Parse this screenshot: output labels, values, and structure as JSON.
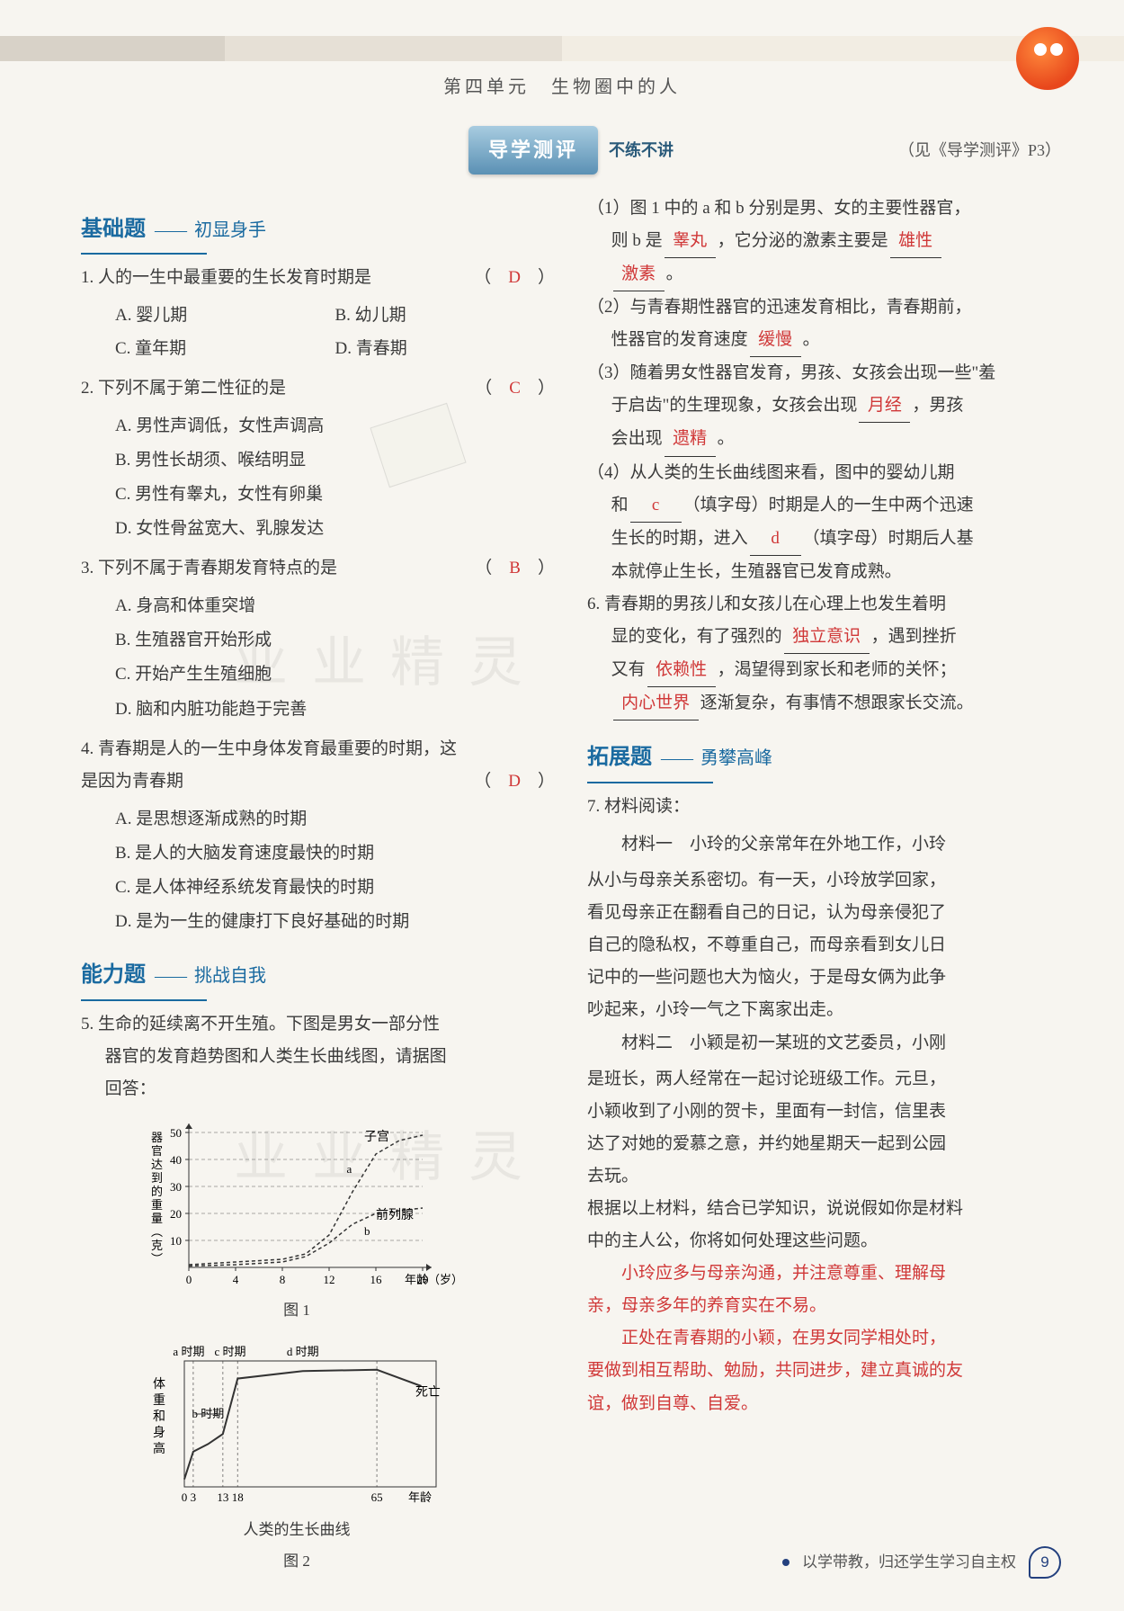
{
  "header": {
    "unit_title": "第四单元　生物圈中的人",
    "badge": "导学测评",
    "badge_sub": "不练不讲",
    "badge_ref": "（见《导学测评》P3）"
  },
  "sections": {
    "basic": {
      "cn": "基础题",
      "script": "初显身手"
    },
    "ability": {
      "cn": "能力题",
      "script": "挑战自我"
    },
    "extend": {
      "cn": "拓展题",
      "script": "勇攀高峰"
    }
  },
  "q1": {
    "stem": "1. 人的一生中最重要的生长发育时期是",
    "ans": "D",
    "A": "A. 婴儿期",
    "B": "B. 幼儿期",
    "C": "C. 童年期",
    "D": "D. 青春期"
  },
  "q2": {
    "stem": "2. 下列不属于第二性征的是",
    "ans": "C",
    "A": "A. 男性声调低，女性声调高",
    "B": "B. 男性长胡须、喉结明显",
    "C": "C. 男性有睾丸，女性有卵巢",
    "D": "D. 女性骨盆宽大、乳腺发达"
  },
  "q3": {
    "stem": "3. 下列不属于青春期发育特点的是",
    "ans": "B",
    "A": "A. 身高和体重突增",
    "B": "B. 生殖器官开始形成",
    "C": "C. 开始产生生殖细胞",
    "D": "D. 脑和内脏功能趋于完善"
  },
  "q4": {
    "stem_a": "4. 青春期是人的一生中身体发育最重要的时期，这",
    "stem_b": "是因为青春期",
    "ans": "D",
    "A": "A. 是思想逐渐成熟的时期",
    "B": "B. 是人的大脑发育速度最快的时期",
    "C": "C. 是人体神经系统发育最快的时期",
    "D": "D. 是为一生的健康打下良好基础的时期"
  },
  "q5": {
    "stem_a": "5. 生命的延续离不开生殖。下图是男女一部分性",
    "stem_b": "器官的发育趋势图和人类生长曲线图，请据图",
    "stem_c": "回答：",
    "chart1": {
      "type": "line",
      "y_label_lines": [
        "器",
        "官",
        "达",
        "到",
        "的",
        "重",
        "量",
        "︵",
        "克",
        "︶"
      ],
      "y_ticks": [
        "10",
        "20",
        "30",
        "40",
        "50"
      ],
      "x_label": "年龄（岁）",
      "x_ticks": [
        "0",
        "4",
        "8",
        "12",
        "16",
        "20"
      ],
      "caption": "图 1",
      "series_a_label": "子宫",
      "series_a_sub": "a",
      "series_b_label": "前列腺",
      "series_b_sub": "b",
      "line_color": "#333333",
      "dash": "4,3",
      "a_points": [
        [
          0,
          1
        ],
        [
          4,
          2
        ],
        [
          8,
          3
        ],
        [
          10,
          5
        ],
        [
          12,
          12
        ],
        [
          14,
          28
        ],
        [
          16,
          42
        ],
        [
          18,
          47
        ],
        [
          20,
          49
        ]
      ],
      "b_points": [
        [
          0,
          0.5
        ],
        [
          4,
          1
        ],
        [
          8,
          2
        ],
        [
          10,
          4
        ],
        [
          12,
          9
        ],
        [
          14,
          16
        ],
        [
          16,
          20
        ],
        [
          18,
          21
        ],
        [
          20,
          22
        ]
      ]
    },
    "chart2": {
      "type": "line",
      "caption_top_labels": [
        "a 时期",
        "c 时期",
        "d 时期"
      ],
      "b_label": "b 时期",
      "right_label": "死亡",
      "y_label_lines": [
        "体",
        "重",
        "和",
        "身",
        "高"
      ],
      "x_ticks": [
        "0",
        "3",
        "13",
        "18",
        "65",
        "年龄"
      ],
      "caption_a": "人类的生长曲线",
      "caption_b": "图 2",
      "line_color": "#333333",
      "points": [
        [
          0,
          6
        ],
        [
          3,
          28
        ],
        [
          8,
          34
        ],
        [
          13,
          42
        ],
        [
          18,
          86
        ],
        [
          40,
          92
        ],
        [
          65,
          93
        ],
        [
          80,
          80
        ]
      ],
      "v_lines": [
        3,
        13,
        18,
        65
      ]
    },
    "p1_a": "（1）图 1 中的 a 和 b 分别是男、女的主要性器官，",
    "p1_b": "则 b 是",
    "p1_b_ans": "睾丸",
    "p1_c": "，它分泌的激素主要是",
    "p1_c_ans": "雄性",
    "p1_d_ans": "激素",
    "p1_d": "。",
    "p2_a": "（2）与青春期性器官的迅速发育相比，青春期前，",
    "p2_b": "性器官的发育速度",
    "p2_b_ans": "缓慢",
    "p2_c": "。",
    "p3_a": "（3）随着男女性器官发育，男孩、女孩会出现一些\"羞",
    "p3_b": "于启齿\"的生理现象，女孩会出现",
    "p3_b_ans": "月经",
    "p3_c": "，男孩",
    "p3_d": "会出现",
    "p3_d_ans": "遗精",
    "p3_e": "。",
    "p4_a": "（4）从人类的生长曲线图来看，图中的婴幼儿期",
    "p4_b": "和",
    "p4_b_ans": "c",
    "p4_c": "（填字母）时期是人的一生中两个迅速",
    "p4_d": "生长的时期，进入",
    "p4_d_ans": "d",
    "p4_e": "（填字母）时期后人基",
    "p4_f": "本就停止生长，生殖器官已发育成熟。"
  },
  "q6": {
    "a": "6. 青春期的男孩儿和女孩儿在心理上也发生着明",
    "b": "显的变化，有了强烈的",
    "b_ans": "独立意识",
    "c": "，遇到挫折",
    "d": "又有",
    "d_ans": "依赖性",
    "e": "，渴望得到家长和老师的关怀；",
    "f_ans": "内心世界",
    "f": "逐渐复杂，有事情不想跟家长交流。"
  },
  "q7": {
    "head": "7. 材料阅读：",
    "m1_a": "材料一　小玲的父亲常年在外地工作，小玲",
    "m1_b": "从小与母亲关系密切。有一天，小玲放学回家，",
    "m1_c": "看见母亲正在翻看自己的日记，认为母亲侵犯了",
    "m1_d": "自己的隐私权，不尊重自己，而母亲看到女儿日",
    "m1_e": "记中的一些问题也大为恼火，于是母女俩为此争",
    "m1_f": "吵起来，小玲一气之下离家出走。",
    "m2_a": "材料二　小颖是初一某班的文艺委员，小刚",
    "m2_b": "是班长，两人经常在一起讨论班级工作。元旦，",
    "m2_c": "小颖收到了小刚的贺卡，里面有一封信，信里表",
    "m2_d": "达了对她的爱慕之意，并约她星期天一起到公园",
    "m2_e": "去玩。",
    "ask_a": "根据以上材料，结合已学知识，说说假如你是材料",
    "ask_b": "中的主人公，你将如何处理这些问题。",
    "ans1_a": "小玲应多与母亲沟通，并注意尊重、理解母",
    "ans1_b": "亲，母亲多年的养育实在不易。",
    "ans2_a": "正处在青春期的小颖，在男女同学相处时，",
    "ans2_b": "要做到相互帮助、勉励，共同进步，建立真诚的友",
    "ans2_c": "谊，做到自尊、自爱。"
  },
  "footer": {
    "motto": "以学带教，归还学生学习自主权",
    "page": "9"
  },
  "watermark": "业 业 精 灵"
}
